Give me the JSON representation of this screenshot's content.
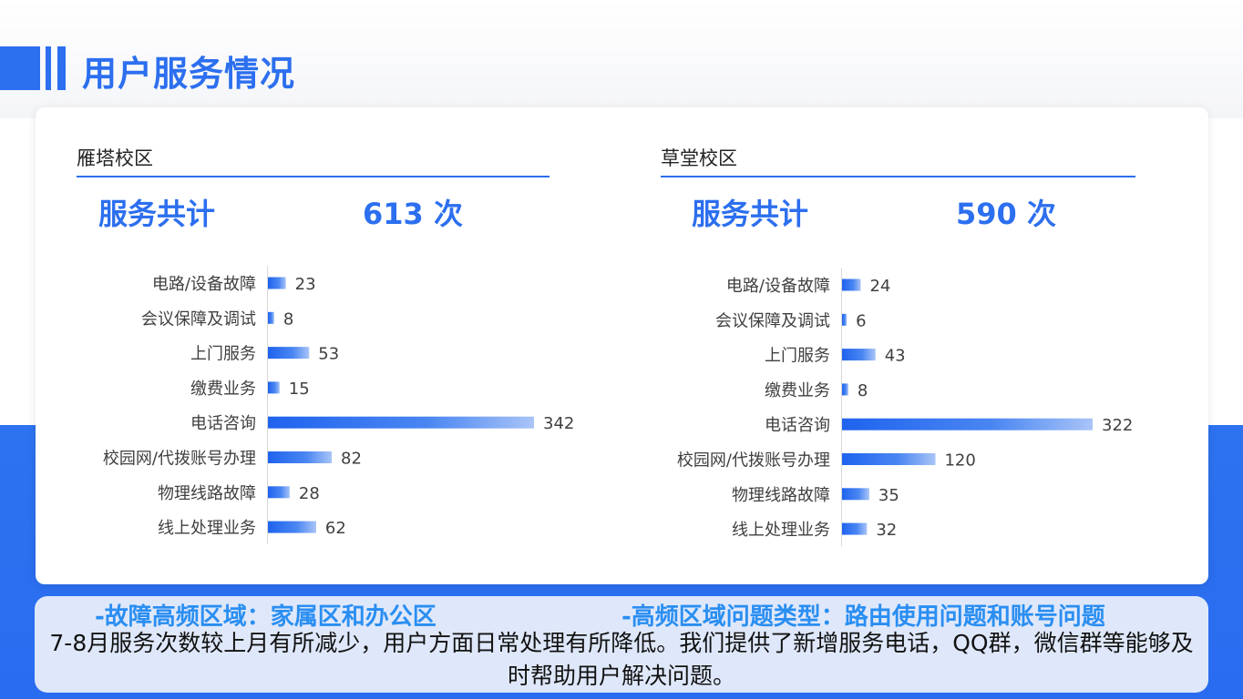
{
  "page": {
    "title": "用户服务情况"
  },
  "colors": {
    "accent": "#2c6fef",
    "highlight": "#2a8ef2",
    "summary_bg": "#dfe8fa"
  },
  "campuses": [
    {
      "name": "雁塔校区",
      "total_label": "服务共计",
      "total_value": "613 次"
    },
    {
      "name": "草堂校区",
      "total_label": "服务共计",
      "total_value": "590  次"
    }
  ],
  "chart_data": [
    {
      "type": "bar",
      "orientation": "horizontal",
      "title": "雁塔校区",
      "categories": [
        "电路/设备故障",
        "会议保障及调试",
        "上门服务",
        "缴费业务",
        "电话咨询",
        "校园网/代拨账号办理",
        "物理线路故障",
        "线上处理业务"
      ],
      "values": [
        23,
        8,
        53,
        15,
        342,
        82,
        28,
        62
      ],
      "data_labels": [
        "23",
        "8",
        "53",
        "15",
        "342",
        "82",
        "28",
        "62"
      ],
      "xlim": [
        0,
        342
      ],
      "grid": false,
      "legend": "none"
    },
    {
      "type": "bar",
      "orientation": "horizontal",
      "title": "草堂校区",
      "categories": [
        "电路/设备故障",
        "会议保障及调试",
        "上门服务",
        "缴费业务",
        "电话咨询",
        "校园网/代拨账号办理",
        "物理线路故障",
        "线上处理业务"
      ],
      "values": [
        24,
        6,
        43,
        8,
        322,
        120,
        35,
        32
      ],
      "data_labels": [
        "24",
        "6",
        "43",
        "8",
        "322",
        "120",
        "35",
        "32"
      ],
      "xlim": [
        0,
        322
      ],
      "grid": false,
      "legend": "none"
    }
  ],
  "summary": {
    "highlight_left": "-故障高频区域：家属区和办公区",
    "highlight_right": "-高频区域问题类型：路由使用问题和账号问题",
    "text": "7-8月服务次数较上月有所减少，用户方面日常处理有所降低。我们提供了新增服务电话，QQ群，微信群等能够及时帮助用户解决问题。"
  }
}
